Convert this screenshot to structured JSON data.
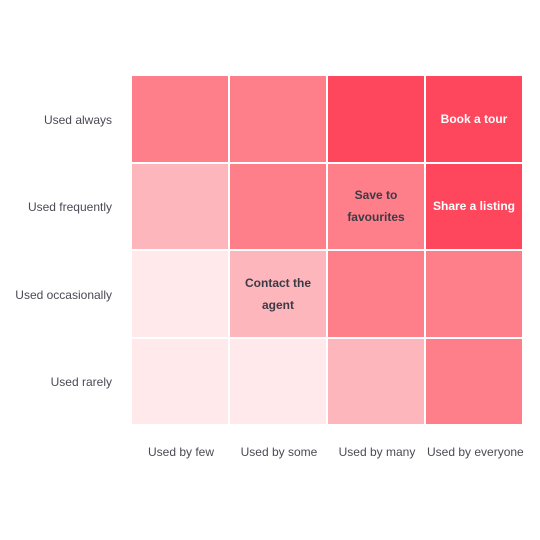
{
  "chart_data": {
    "type": "heatmap",
    "title": "",
    "x_categories": [
      "Used by few",
      "Used by some",
      "Used by many",
      "Used by everyone"
    ],
    "y_categories": [
      "Used always",
      "Used frequently",
      "Used occasionally",
      "Used rarely"
    ],
    "intensity": [
      [
        3,
        3,
        4,
        4
      ],
      [
        2,
        3,
        3,
        4
      ],
      [
        1,
        2,
        3,
        3
      ],
      [
        1,
        1,
        2,
        3
      ]
    ],
    "cell_labels": [
      [
        "",
        "",
        "",
        "Book a tour"
      ],
      [
        "",
        "",
        "Save to favourites",
        "Share a listing"
      ],
      [
        "",
        "Contact the agent",
        "",
        ""
      ],
      [
        "",
        "",
        "",
        ""
      ]
    ],
    "colors": {
      "1": "#ffe9eb",
      "2": "#feb6bd",
      "3": "#fe7f8a",
      "4": "#fe475c"
    },
    "label_text_colors": {
      "dark": "#3b3b45",
      "light": "#ffffff"
    }
  }
}
